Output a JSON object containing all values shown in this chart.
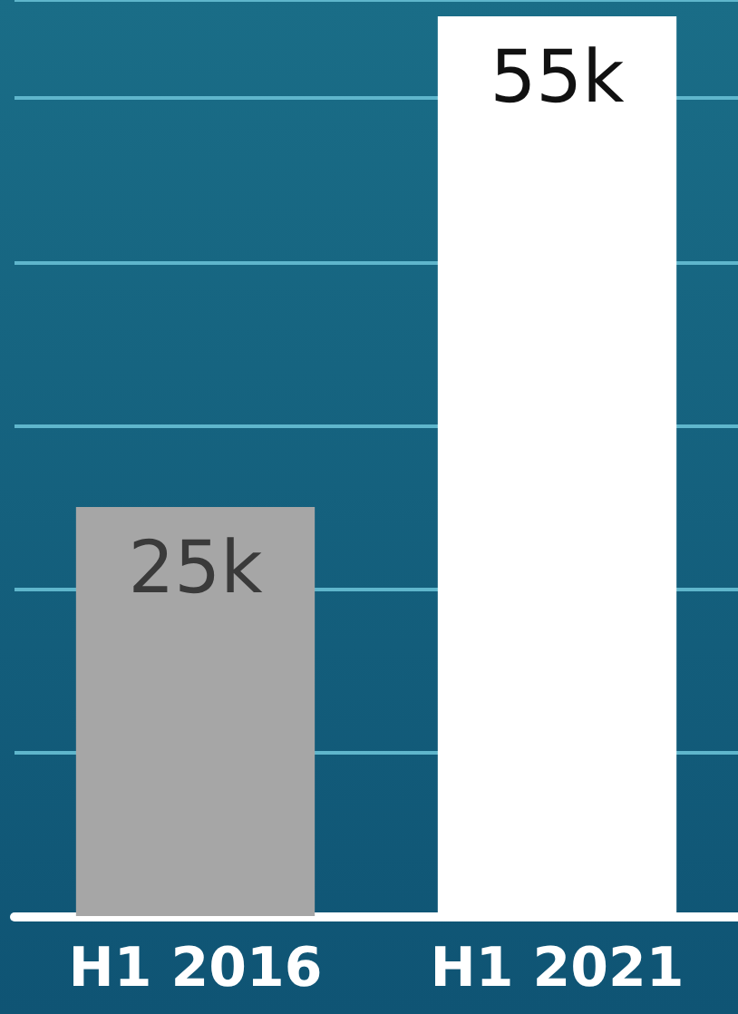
{
  "chart_data": {
    "type": "bar",
    "categories": [
      "H1 2016",
      "H1 2021"
    ],
    "values": [
      25000,
      55000
    ],
    "colors": [
      "#a6a6a6",
      "#ffffff"
    ],
    "value_labels": [
      "25k",
      "55k"
    ],
    "ylim": [
      0,
      56000
    ],
    "yticks": [
      {
        "value": 0,
        "label": null
      },
      {
        "value": 10000,
        "label": null
      },
      {
        "value": 20000,
        "label": null
      },
      {
        "value": 30000,
        "label": null
      },
      {
        "value": 40000,
        "label": null
      },
      {
        "value": 50000,
        "label": null
      }
    ],
    "tick_labels": "x",
    "grid": "y"
  }
}
